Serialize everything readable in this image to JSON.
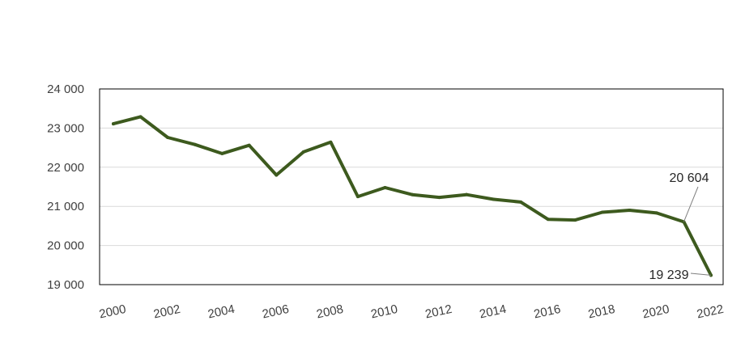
{
  "chart_data": {
    "type": "line",
    "title": "",
    "xlabel": "",
    "ylabel": "",
    "x": [
      2000,
      2001,
      2002,
      2003,
      2004,
      2005,
      2006,
      2007,
      2008,
      2009,
      2010,
      2011,
      2012,
      2013,
      2014,
      2015,
      2016,
      2017,
      2018,
      2019,
      2020,
      2021,
      2022
    ],
    "series": [
      {
        "color": "#3d5a1e",
        "values": [
          23110,
          23290,
          22760,
          22580,
          22350,
          22560,
          21800,
          22390,
          22640,
          21250,
          21480,
          21300,
          21230,
          21300,
          21180,
          21110,
          20670,
          20650,
          20850,
          20900,
          20830,
          20604,
          19239
        ]
      }
    ],
    "xlim": [
      2000,
      2022
    ],
    "ylim": [
      19000,
      24000
    ],
    "xticks": [
      "2000",
      "2002",
      "2004",
      "2006",
      "2008",
      "2010",
      "2012",
      "2014",
      "2016",
      "2018",
      "2020",
      "2022"
    ],
    "yticks": [
      "19 000",
      "20 000",
      "21 000",
      "22 000",
      "23 000",
      "24 000"
    ],
    "grid": true,
    "legend": "none",
    "annotations": [
      {
        "x": 2021,
        "y": 20604,
        "text": "20 604"
      },
      {
        "x": 2022,
        "y": 19239,
        "text": "19 239"
      }
    ]
  }
}
